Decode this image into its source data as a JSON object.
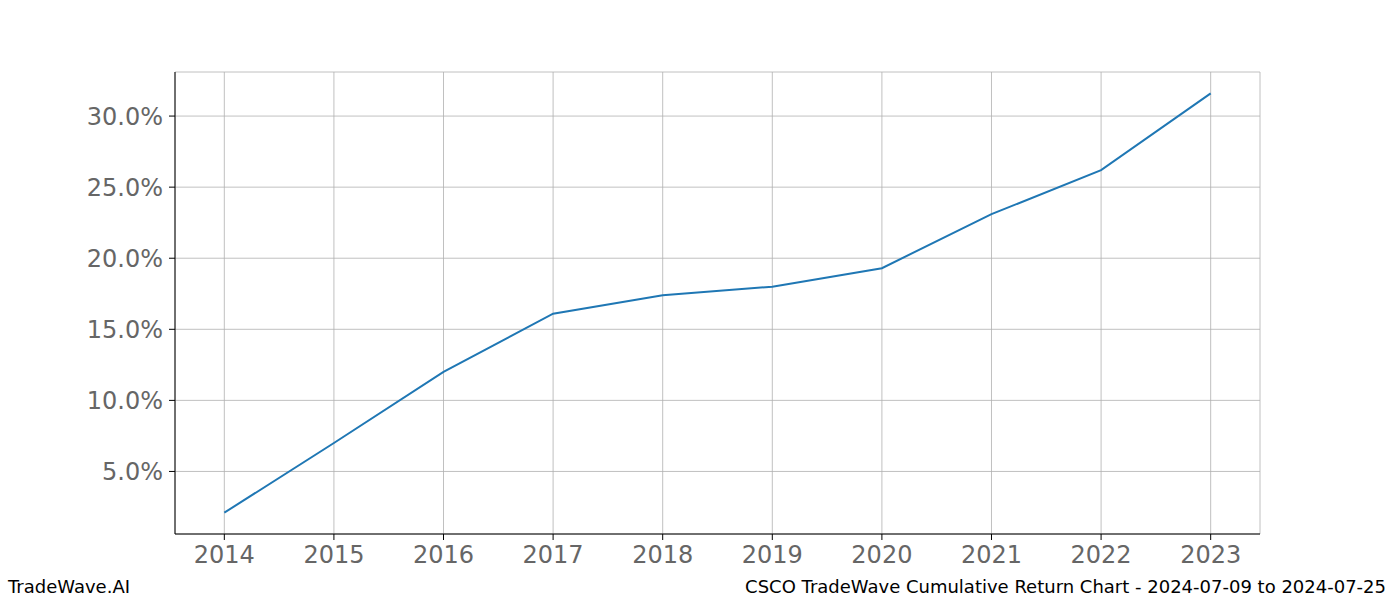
{
  "chart_data": {
    "type": "line",
    "title": "CSCO TradeWave Cumulative Return Chart - 2024-07-09 to 2024-07-25",
    "annotations": [
      "TradeWave.AI"
    ],
    "x": [
      2014,
      2015,
      2016,
      2017,
      2018,
      2019,
      2020,
      2021,
      2022,
      2023
    ],
    "series": [
      {
        "name": "CSCO",
        "color": "#1f77b4",
        "values": [
          2.1,
          7.0,
          12.0,
          16.1,
          17.4,
          18.0,
          19.3,
          23.1,
          26.2,
          31.6
        ]
      }
    ],
    "xlim": [
      2013.55,
      2023.45
    ],
    "xticks": [
      2014,
      2015,
      2016,
      2017,
      2018,
      2019,
      2020,
      2021,
      2022,
      2023
    ],
    "ylim": [
      0.6,
      33.1
    ],
    "yticks": [
      {
        "value": 5,
        "label": "5.0%"
      },
      {
        "value": 10,
        "label": "10.0%"
      },
      {
        "value": 15,
        "label": "15.0%"
      },
      {
        "value": 20,
        "label": "20.0%"
      },
      {
        "value": 25,
        "label": "25.0%"
      },
      {
        "value": 30,
        "label": "30.0%"
      }
    ],
    "grid": true
  }
}
